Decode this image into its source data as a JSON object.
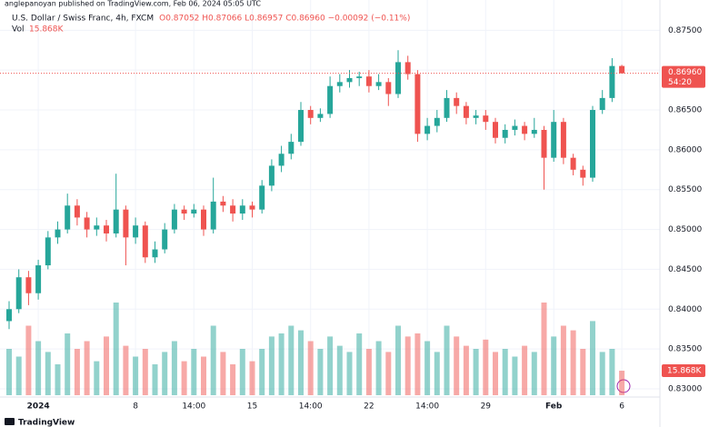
{
  "chart_data": {
    "type": "candlestick",
    "publisher": "anglepanoyan published on TradingView.com, Feb 06, 2024 05:05 UTC",
    "title": "U.S. Dollar / Swiss Franc, 4h, FXCM",
    "ohlc_text": "O0.87052 H0.87066 L0.86957 C0.86960 −0.00092 (−0.11%)",
    "last_price_label": "0.86960",
    "countdown": "54:20",
    "brand": "TradingView",
    "up_color": "#26a69a",
    "down_color": "#ef5350",
    "grid": true,
    "categories": [
      null,
      null,
      null,
      "2024",
      null,
      null,
      null,
      null,
      null,
      null,
      null,
      null,
      null,
      "8",
      null,
      null,
      null,
      null,
      null,
      "14:00",
      null,
      null,
      null,
      null,
      null,
      "15",
      null,
      null,
      null,
      null,
      null,
      "14:00",
      null,
      null,
      null,
      null,
      null,
      "22",
      null,
      null,
      null,
      null,
      null,
      "14:00",
      null,
      null,
      null,
      null,
      null,
      "29",
      null,
      null,
      null,
      null,
      null,
      null,
      "Feb",
      null,
      null,
      null,
      null,
      null,
      null,
      "6"
    ],
    "open": [
      0.8385,
      0.84,
      0.844,
      0.842,
      0.8455,
      0.849,
      0.85,
      0.853,
      0.8515,
      0.85,
      0.8505,
      0.8495,
      0.8525,
      0.849,
      0.8505,
      0.8465,
      0.8475,
      0.85,
      0.8525,
      0.852,
      0.8525,
      0.85,
      0.8535,
      0.853,
      0.852,
      0.853,
      0.8525,
      0.8555,
      0.858,
      0.8595,
      0.861,
      0.865,
      0.864,
      0.8645,
      0.868,
      0.8685,
      0.869,
      0.8692,
      0.868,
      0.8685,
      0.867,
      0.871,
      0.8695,
      0.862,
      0.863,
      0.864,
      0.8665,
      0.8655,
      0.864,
      0.8643,
      0.8635,
      0.8615,
      0.8625,
      0.863,
      0.862,
      0.8625,
      0.859,
      0.8635,
      0.859,
      0.8575,
      0.8565,
      0.865,
      0.8665,
      0.87052
    ],
    "high": [
      0.841,
      0.845,
      0.8448,
      0.8462,
      0.8498,
      0.851,
      0.8545,
      0.8538,
      0.8522,
      0.8515,
      0.8512,
      0.857,
      0.853,
      0.8515,
      0.851,
      0.8485,
      0.8508,
      0.8532,
      0.853,
      0.8532,
      0.853,
      0.8565,
      0.8542,
      0.8538,
      0.8538,
      0.8535,
      0.8562,
      0.8588,
      0.8605,
      0.862,
      0.866,
      0.8655,
      0.8652,
      0.8692,
      0.8695,
      0.87,
      0.8698,
      0.87,
      0.8695,
      0.869,
      0.8725,
      0.8718,
      0.87,
      0.864,
      0.865,
      0.8675,
      0.8672,
      0.866,
      0.865,
      0.865,
      0.864,
      0.8632,
      0.8638,
      0.8635,
      0.864,
      0.863,
      0.865,
      0.864,
      0.8595,
      0.858,
      0.8655,
      0.8675,
      0.8715,
      0.87066
    ],
    "low": [
      0.8375,
      0.8395,
      0.8405,
      0.8412,
      0.845,
      0.8482,
      0.8495,
      0.8505,
      0.849,
      0.8492,
      0.8485,
      0.849,
      0.8455,
      0.8482,
      0.8458,
      0.8458,
      0.847,
      0.8495,
      0.8512,
      0.8515,
      0.8492,
      0.8495,
      0.8522,
      0.851,
      0.8512,
      0.8515,
      0.852,
      0.8548,
      0.8572,
      0.8588,
      0.8605,
      0.8632,
      0.8635,
      0.864,
      0.8672,
      0.8678,
      0.868,
      0.8672,
      0.8675,
      0.8655,
      0.8665,
      0.8688,
      0.861,
      0.8612,
      0.8622,
      0.8635,
      0.8645,
      0.8632,
      0.8632,
      0.8625,
      0.8608,
      0.8608,
      0.8618,
      0.8612,
      0.8615,
      0.855,
      0.8585,
      0.8582,
      0.8568,
      0.8555,
      0.856,
      0.8645,
      0.866,
      0.86957
    ],
    "close": [
      0.84,
      0.844,
      0.842,
      0.8455,
      0.849,
      0.85,
      0.853,
      0.8515,
      0.85,
      0.8505,
      0.8495,
      0.8525,
      0.849,
      0.8505,
      0.8465,
      0.8475,
      0.85,
      0.8525,
      0.852,
      0.8525,
      0.85,
      0.8535,
      0.853,
      0.852,
      0.853,
      0.8525,
      0.8555,
      0.858,
      0.8595,
      0.861,
      0.865,
      0.864,
      0.8645,
      0.868,
      0.8685,
      0.869,
      0.8692,
      0.868,
      0.8685,
      0.867,
      0.871,
      0.8695,
      0.862,
      0.863,
      0.864,
      0.8665,
      0.8655,
      0.864,
      0.8643,
      0.8635,
      0.8615,
      0.8625,
      0.863,
      0.862,
      0.8625,
      0.859,
      0.8635,
      0.859,
      0.8575,
      0.8565,
      0.865,
      0.8665,
      0.87052,
      0.8696
    ],
    "volume": {
      "name": "Vol",
      "last_label": "15.868K",
      "values": [
        30000,
        25000,
        45000,
        35000,
        28000,
        20000,
        40000,
        30000,
        35000,
        22000,
        38000,
        60000,
        32000,
        25000,
        30000,
        20000,
        28000,
        35000,
        22000,
        30000,
        25000,
        45000,
        28000,
        20000,
        30000,
        22000,
        30000,
        38000,
        40000,
        45000,
        42000,
        35000,
        30000,
        38000,
        32000,
        28000,
        40000,
        30000,
        35000,
        28000,
        45000,
        38000,
        40000,
        35000,
        28000,
        45000,
        38000,
        32000,
        30000,
        36000,
        28000,
        30000,
        25000,
        32000,
        28000,
        60000,
        38000,
        45000,
        42000,
        30000,
        48000,
        28000,
        30000,
        15868
      ]
    },
    "ylim": [
      0.8292,
      0.8788
    ],
    "yticks": [
      {
        "value": 0.875,
        "label": "0.87500"
      },
      {
        "value": 0.87,
        "label": "0.87000"
      },
      {
        "value": 0.865,
        "label": "0.86500"
      },
      {
        "value": 0.86,
        "label": "0.86000"
      },
      {
        "value": 0.855,
        "label": "0.85500"
      },
      {
        "value": 0.85,
        "label": "0.85000"
      },
      {
        "value": 0.845,
        "label": "0.84500"
      },
      {
        "value": 0.84,
        "label": "0.84000"
      },
      {
        "value": 0.835,
        "label": "0.83500"
      },
      {
        "value": 0.83,
        "label": "0.83000"
      }
    ]
  }
}
